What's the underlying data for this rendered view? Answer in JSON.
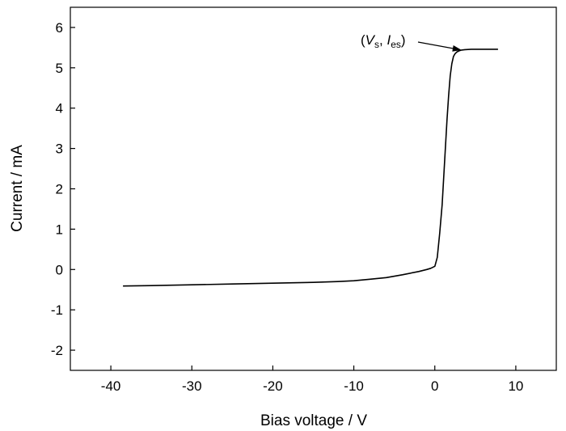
{
  "chart_data": {
    "type": "line",
    "title": "",
    "xlabel": "Bias voltage / V",
    "ylabel": "Current / mA",
    "xlim": [
      -45,
      15
    ],
    "ylim": [
      -2.5,
      6.5
    ],
    "x_ticks": [
      -40,
      -30,
      -20,
      -10,
      0,
      10
    ],
    "y_ticks": [
      -2,
      -1,
      0,
      1,
      2,
      3,
      4,
      5,
      6
    ],
    "grid": false,
    "legend": "none",
    "colors": {
      "line": "#000000",
      "axis": "#000000"
    },
    "series": [
      {
        "x": [
          -38.5,
          -35,
          -30,
          -25,
          -20,
          -15,
          -12,
          -10,
          -8,
          -6,
          -4,
          -2,
          -1,
          -0.5,
          0,
          0.3,
          0.6,
          0.9,
          1.1,
          1.3,
          1.5,
          1.7,
          1.9,
          2.1,
          2.3,
          2.5,
          2.7,
          3.0,
          3.3,
          3.7,
          4.5,
          6,
          7.8
        ],
        "y": [
          -0.41,
          -0.4,
          -0.38,
          -0.36,
          -0.34,
          -0.32,
          -0.3,
          -0.28,
          -0.24,
          -0.2,
          -0.13,
          -0.05,
          0.0,
          0.03,
          0.08,
          0.3,
          0.9,
          1.6,
          2.3,
          3.0,
          3.7,
          4.3,
          4.8,
          5.1,
          5.28,
          5.35,
          5.39,
          5.42,
          5.44,
          5.45,
          5.46,
          5.46,
          5.46
        ]
      }
    ],
    "annotations": [
      {
        "label": [
          "(",
          "V",
          "s",
          ", ",
          "I",
          "es",
          ")"
        ],
        "arrow_to": {
          "x": 3.3,
          "y": 5.44
        }
      }
    ]
  }
}
